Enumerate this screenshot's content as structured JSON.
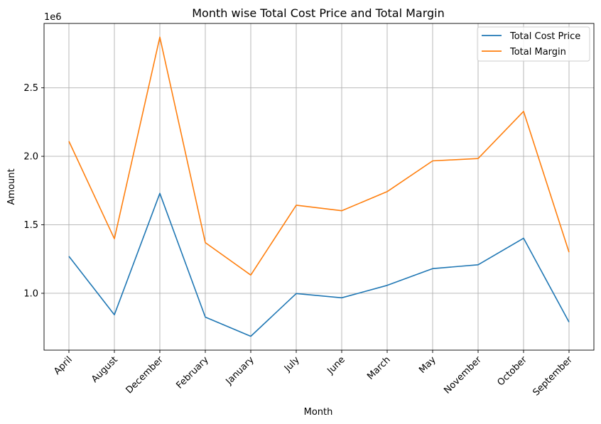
{
  "chart_data": {
    "type": "line",
    "title": "Month wise Total Cost Price and Total Margin",
    "xlabel": "Month",
    "ylabel": "Amount",
    "y_offset_label": "1e6",
    "categories": [
      "April",
      "August",
      "December",
      "February",
      "January",
      "July",
      "June",
      "March",
      "May",
      "November",
      "October",
      "September"
    ],
    "series": [
      {
        "name": "Total Cost Price",
        "color": "#1f77b4",
        "values": [
          1270000,
          843000,
          1730000,
          826000,
          686000,
          998000,
          967000,
          1058000,
          1180000,
          1208000,
          1402000,
          790000
        ]
      },
      {
        "name": "Total Margin",
        "color": "#ff7f0e",
        "values": [
          2110000,
          1398000,
          2870000,
          1370000,
          1133000,
          1643000,
          1603000,
          1742000,
          1967000,
          1984000,
          2328000,
          1300000
        ]
      }
    ],
    "yticks": [
      1000000,
      1500000,
      2000000,
      2500000
    ],
    "ytick_labels": [
      "1.0",
      "1.5",
      "2.0",
      "2.5"
    ],
    "ylim": [
      585000,
      2970000
    ],
    "grid": true,
    "legend_position": "upper right"
  }
}
